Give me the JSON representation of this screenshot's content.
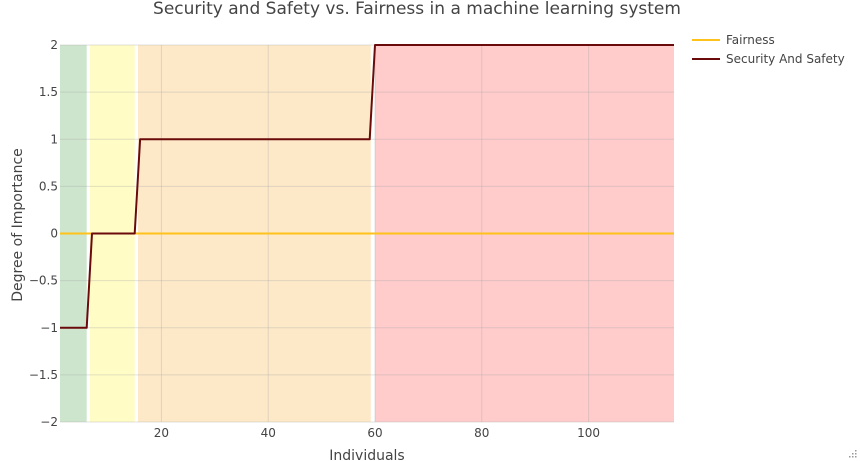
{
  "chart_data": {
    "type": "line",
    "title": "Security and Safety vs. Fairness in a machine learning system",
    "xlabel": "Individuals",
    "ylabel": "Degree of Importance",
    "xlim": [
      1,
      116
    ],
    "ylim": [
      -2,
      2
    ],
    "x_ticks": [
      20,
      40,
      60,
      80,
      100
    ],
    "x_tick_labels": [
      "20",
      "40",
      "60",
      "80",
      "100"
    ],
    "y_ticks": [
      -2,
      -1.5,
      -1,
      -0.5,
      0,
      0.5,
      1,
      1.5,
      2
    ],
    "y_tick_labels": [
      "−2",
      "−1.5",
      "−1",
      "−0.5",
      "0",
      "0.5",
      "1",
      "1.5",
      "2"
    ],
    "grid": true,
    "legend_position": "top-right",
    "bands": [
      {
        "x0": 1,
        "x1": 6,
        "color": "#cde5cc"
      },
      {
        "x0": 6.6,
        "x1": 15,
        "color": "#fffcc5"
      },
      {
        "x0": 15.6,
        "x1": 59.2,
        "color": "#fde9c8"
      },
      {
        "x0": 60,
        "x1": 116,
        "color": "#ffcbcb"
      }
    ],
    "series": [
      {
        "name": "Fairness",
        "color": "#ffc21a",
        "x": [
          1,
          116
        ],
        "y": [
          0,
          0
        ]
      },
      {
        "name": "Security And Safety",
        "color": "#6b0a0a",
        "x": [
          1,
          6,
          7,
          15,
          16,
          59,
          60,
          116
        ],
        "y": [
          -1,
          -1,
          0,
          0,
          1,
          1,
          2,
          2
        ]
      }
    ]
  }
}
